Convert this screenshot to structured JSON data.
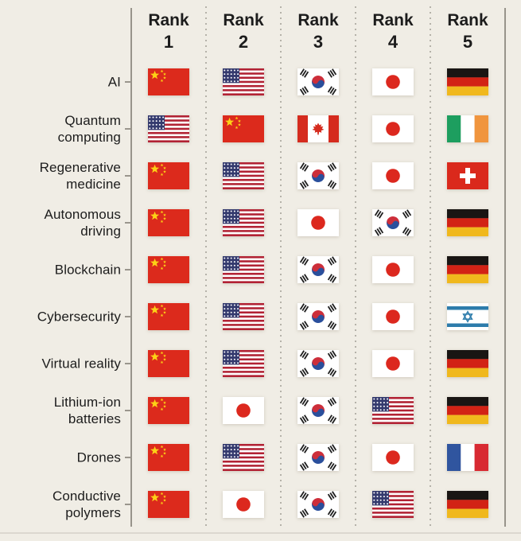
{
  "colors": {
    "background": "#f0ede5",
    "text": "#1c1c1c",
    "axis_line": "#98948b",
    "dotted_line": "#b5b2a9",
    "tick": "#9a968d",
    "bottom_rule": "#dcd8cf"
  },
  "header": {
    "rank_word": "Rank",
    "columns": [
      "1",
      "2",
      "3",
      "4",
      "5"
    ]
  },
  "rows": [
    {
      "label": "AI",
      "ranks": [
        "cn",
        "us",
        "kr",
        "jp",
        "de"
      ]
    },
    {
      "label": "Quantum computing",
      "ranks": [
        "us",
        "cn",
        "ca",
        "jp",
        "ie"
      ]
    },
    {
      "label": "Regenerative medicine",
      "ranks": [
        "cn",
        "us",
        "kr",
        "jp",
        "ch"
      ]
    },
    {
      "label": "Autonomous driving",
      "ranks": [
        "cn",
        "us",
        "jp",
        "kr",
        "de"
      ]
    },
    {
      "label": "Blockchain",
      "ranks": [
        "cn",
        "us",
        "kr",
        "jp",
        "de"
      ]
    },
    {
      "label": "Cybersecurity",
      "ranks": [
        "cn",
        "us",
        "kr",
        "jp",
        "il"
      ]
    },
    {
      "label": "Virtual reality",
      "ranks": [
        "cn",
        "us",
        "kr",
        "jp",
        "de"
      ]
    },
    {
      "label": "Lithium-ion batteries",
      "ranks": [
        "cn",
        "jp",
        "kr",
        "us",
        "de"
      ]
    },
    {
      "label": "Drones",
      "ranks": [
        "cn",
        "us",
        "kr",
        "jp",
        "fr"
      ]
    },
    {
      "label": "Conductive polymers",
      "ranks": [
        "cn",
        "jp",
        "kr",
        "us",
        "de"
      ]
    }
  ],
  "country_names": {
    "cn": "China",
    "us": "United States",
    "kr": "South Korea",
    "jp": "Japan",
    "de": "Germany",
    "ca": "Canada",
    "ie": "Ireland",
    "ch": "Switzerland",
    "il": "Israel",
    "fr": "France"
  },
  "flag_palette": {
    "china_red": "#dc2a1c",
    "star_yellow": "#fcd116",
    "us_red": "#b22234",
    "us_blue": "#343a6e",
    "white": "#ffffff",
    "kr_red": "#cd2e3a",
    "kr_blue": "#2a4f9c",
    "trigram_black": "#1e1e1e",
    "jp_red": "#dc281e",
    "de_black": "#191513",
    "de_red": "#d22215",
    "de_gold": "#f0b81d",
    "ca_red": "#d52b1e",
    "ie_green": "#1d9e5f",
    "ie_orange": "#f0953e",
    "ch_red": "#da291c",
    "il_blue": "#2d7cab",
    "fr_blue": "#30559f",
    "fr_red": "#d82a32"
  },
  "chart_data": {
    "type": "table",
    "title": "",
    "columns": [
      "Rank 1",
      "Rank 2",
      "Rank 3",
      "Rank 4",
      "Rank 5"
    ],
    "row_labels": [
      "AI",
      "Quantum computing",
      "Regenerative medicine",
      "Autonomous driving",
      "Blockchain",
      "Cybersecurity",
      "Virtual reality",
      "Lithium-ion batteries",
      "Drones",
      "Conductive polymers"
    ],
    "values": [
      [
        "China",
        "United States",
        "South Korea",
        "Japan",
        "Germany"
      ],
      [
        "United States",
        "China",
        "Canada",
        "Japan",
        "Ireland"
      ],
      [
        "China",
        "United States",
        "South Korea",
        "Japan",
        "Switzerland"
      ],
      [
        "China",
        "United States",
        "Japan",
        "South Korea",
        "Germany"
      ],
      [
        "China",
        "United States",
        "South Korea",
        "Japan",
        "Germany"
      ],
      [
        "China",
        "United States",
        "South Korea",
        "Japan",
        "Israel"
      ],
      [
        "China",
        "United States",
        "South Korea",
        "Japan",
        "Germany"
      ],
      [
        "China",
        "Japan",
        "South Korea",
        "United States",
        "Germany"
      ],
      [
        "China",
        "United States",
        "South Korea",
        "Japan",
        "France"
      ],
      [
        "China",
        "Japan",
        "South Korea",
        "United States",
        "Germany"
      ]
    ],
    "legend_position": "none",
    "grid": "dotted-column-separators"
  }
}
